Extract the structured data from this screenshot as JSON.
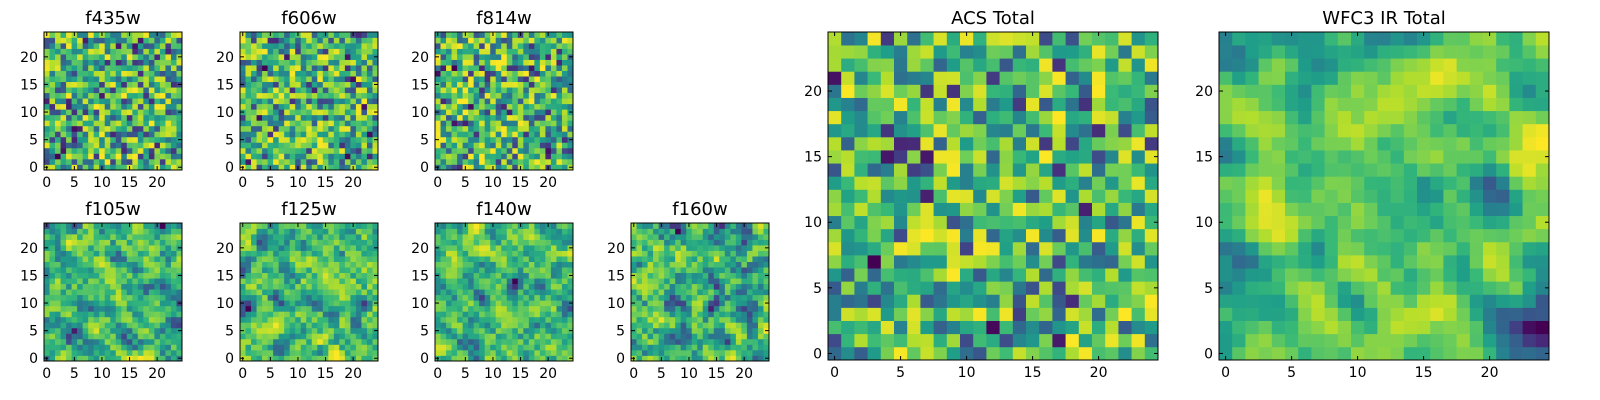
{
  "chart_data": [
    {
      "type": "heatmap",
      "title": "f435w",
      "grid": [
        25,
        25
      ],
      "xlim": [
        0,
        25
      ],
      "ylim": [
        0,
        25
      ],
      "x_ticks": [
        "0",
        "5",
        "10",
        "15",
        "20"
      ],
      "y_ticks": [
        "0",
        "5",
        "10",
        "15",
        "20"
      ],
      "colormap": "viridis",
      "seed": 435,
      "smooth": 0
    },
    {
      "type": "heatmap",
      "title": "f606w",
      "grid": [
        25,
        25
      ],
      "xlim": [
        0,
        25
      ],
      "ylim": [
        0,
        25
      ],
      "x_ticks": [
        "0",
        "5",
        "10",
        "15",
        "20"
      ],
      "y_ticks": [
        "0",
        "5",
        "10",
        "15",
        "20"
      ],
      "colormap": "viridis",
      "seed": 606,
      "smooth": 0
    },
    {
      "type": "heatmap",
      "title": "f814w",
      "grid": [
        25,
        25
      ],
      "xlim": [
        0,
        25
      ],
      "ylim": [
        0,
        25
      ],
      "x_ticks": [
        "0",
        "5",
        "10",
        "15",
        "20"
      ],
      "y_ticks": [
        "0",
        "5",
        "10",
        "15",
        "20"
      ],
      "colormap": "viridis",
      "seed": 814,
      "smooth": 0
    },
    {
      "type": "heatmap",
      "title": "f105w",
      "grid": [
        25,
        25
      ],
      "xlim": [
        0,
        25
      ],
      "ylim": [
        0,
        25
      ],
      "x_ticks": [
        "0",
        "5",
        "10",
        "15",
        "20"
      ],
      "y_ticks": [
        "0",
        "5",
        "10",
        "15",
        "20"
      ],
      "colormap": "viridis",
      "seed": 105,
      "smooth": 1
    },
    {
      "type": "heatmap",
      "title": "f125w",
      "grid": [
        25,
        25
      ],
      "xlim": [
        0,
        25
      ],
      "ylim": [
        0,
        25
      ],
      "x_ticks": [
        "0",
        "5",
        "10",
        "15",
        "20"
      ],
      "y_ticks": [
        "0",
        "5",
        "10",
        "15",
        "20"
      ],
      "colormap": "viridis",
      "seed": 125,
      "smooth": 1
    },
    {
      "type": "heatmap",
      "title": "f140w",
      "grid": [
        25,
        25
      ],
      "xlim": [
        0,
        25
      ],
      "ylim": [
        0,
        25
      ],
      "x_ticks": [
        "0",
        "5",
        "10",
        "15",
        "20"
      ],
      "y_ticks": [
        "0",
        "5",
        "10",
        "15",
        "20"
      ],
      "colormap": "viridis",
      "seed": 140,
      "smooth": 1
    },
    {
      "type": "heatmap",
      "title": "f160w",
      "grid": [
        25,
        25
      ],
      "xlim": [
        0,
        25
      ],
      "ylim": [
        0,
        25
      ],
      "x_ticks": [
        "0",
        "5",
        "10",
        "15",
        "20"
      ],
      "y_ticks": [
        "0",
        "5",
        "10",
        "15",
        "20"
      ],
      "colormap": "viridis",
      "seed": 160,
      "smooth": 1
    },
    {
      "type": "heatmap",
      "title": "ACS Total",
      "grid": [
        25,
        25
      ],
      "xlim": [
        0,
        25
      ],
      "ylim": [
        0,
        25
      ],
      "x_ticks": [
        "0",
        "5",
        "10",
        "15",
        "20"
      ],
      "y_ticks": [
        "0",
        "5",
        "10",
        "15",
        "20"
      ],
      "colormap": "viridis",
      "seed": 1001,
      "smooth": 0
    },
    {
      "type": "heatmap",
      "title": "WFC3 IR Total",
      "grid": [
        25,
        25
      ],
      "xlim": [
        0,
        25
      ],
      "ylim": [
        0,
        25
      ],
      "x_ticks": [
        "0",
        "5",
        "10",
        "15",
        "20"
      ],
      "y_ticks": [
        "0",
        "5",
        "10",
        "15",
        "20"
      ],
      "colormap": "viridis",
      "seed": 2002,
      "smooth": 2
    }
  ]
}
